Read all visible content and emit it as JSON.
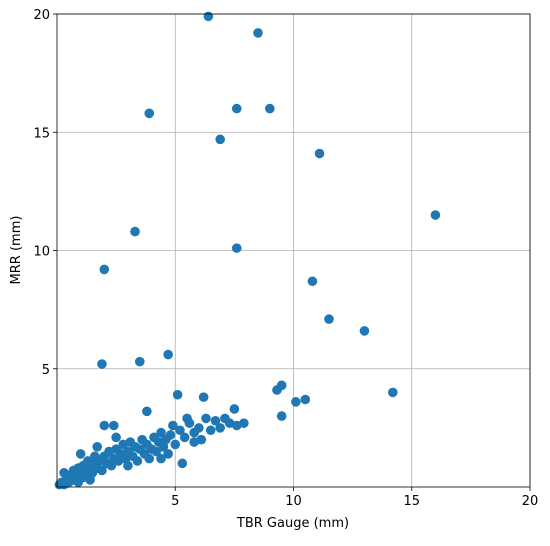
{
  "chart_data": {
    "type": "scatter",
    "x_label": "TBR Gauge (mm)",
    "y_label": "MRR (mm)",
    "xlim": [
      0,
      20
    ],
    "ylim": [
      0,
      20
    ],
    "xticks": [
      5,
      10,
      15,
      20
    ],
    "yticks": [
      5,
      10,
      15,
      20
    ],
    "grid": true,
    "color": "#1f77b4",
    "x": [
      6.4,
      8.5,
      3.9,
      7.6,
      9.0,
      6.9,
      11.1,
      16.0,
      3.3,
      7.6,
      2.0,
      10.8,
      11.5,
      13.0,
      1.9,
      3.5,
      4.7,
      14.2,
      9.3,
      9.5,
      10.1,
      10.5,
      9.5,
      5.1,
      6.2,
      2.0,
      2.4,
      3.8,
      7.5,
      7.9,
      5.5,
      1.7,
      5.3,
      0.1,
      0.2,
      0.3,
      0.4,
      0.5,
      0.5,
      0.6,
      0.7,
      0.7,
      0.8,
      0.9,
      0.9,
      1.0,
      1.1,
      1.1,
      1.2,
      1.3,
      1.3,
      1.4,
      1.5,
      1.5,
      1.6,
      1.7,
      1.8,
      1.9,
      2.0,
      2.1,
      2.2,
      2.3,
      2.4,
      2.5,
      2.6,
      2.7,
      2.8,
      2.9,
      3.0,
      3.1,
      3.2,
      3.3,
      3.4,
      3.5,
      3.6,
      3.7,
      3.8,
      3.9,
      4.0,
      4.1,
      4.2,
      4.3,
      4.4,
      4.5,
      4.6,
      4.7,
      4.8,
      4.9,
      5.0,
      5.2,
      5.4,
      5.6,
      5.8,
      6.0,
      6.1,
      6.3,
      6.5,
      6.7,
      6.9,
      7.1,
      7.3,
      7.6,
      2.5,
      1.0,
      3.0,
      0.3,
      1.4,
      4.4,
      5.8
    ],
    "y": [
      19.9,
      19.2,
      15.8,
      16.0,
      16.0,
      14.7,
      14.1,
      11.5,
      10.8,
      10.1,
      9.2,
      8.7,
      7.1,
      6.6,
      5.2,
      5.3,
      5.6,
      4.0,
      4.1,
      4.3,
      3.6,
      3.7,
      3.0,
      3.9,
      3.8,
      2.6,
      2.6,
      3.2,
      3.3,
      2.7,
      2.9,
      1.7,
      1.0,
      0.1,
      0.2,
      0.1,
      0.3,
      0.2,
      0.5,
      0.4,
      0.3,
      0.7,
      0.5,
      0.2,
      0.8,
      0.6,
      0.4,
      0.9,
      0.7,
      0.5,
      1.1,
      0.8,
      0.6,
      1.0,
      1.3,
      0.8,
      1.1,
      0.7,
      1.3,
      1.0,
      1.5,
      0.9,
      1.2,
      1.6,
      1.1,
      1.4,
      1.8,
      1.2,
      1.5,
      1.9,
      1.3,
      1.7,
      1.1,
      1.6,
      2.0,
      1.4,
      1.8,
      1.2,
      1.6,
      2.1,
      1.5,
      1.9,
      2.3,
      1.7,
      2.0,
      1.4,
      2.2,
      2.6,
      1.8,
      2.4,
      2.1,
      2.7,
      2.3,
      2.5,
      2.0,
      2.9,
      2.4,
      2.8,
      2.5,
      2.9,
      2.7,
      2.6,
      2.1,
      1.4,
      0.9,
      0.6,
      0.3,
      1.2,
      1.9
    ]
  }
}
